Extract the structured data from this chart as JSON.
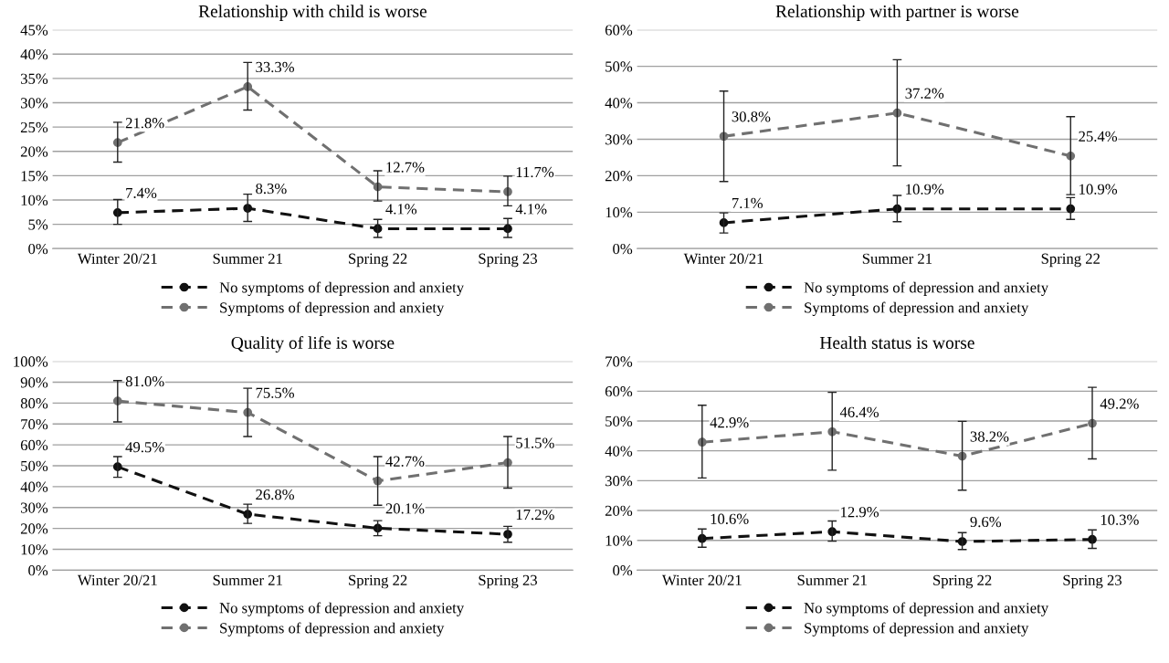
{
  "chart_data": [
    {
      "type": "line",
      "title": "Relationship with child is worse",
      "categories": [
        "Winter 20/21",
        "Summer 21",
        "Spring 22",
        "Spring 23"
      ],
      "ylim": [
        0,
        45
      ],
      "yticks": [
        {
          "value": 0,
          "label": "0%"
        },
        {
          "value": 5,
          "label": "5%"
        },
        {
          "value": 10,
          "label": "10%"
        },
        {
          "value": 15,
          "label": "15%"
        },
        {
          "value": 20,
          "label": "20%"
        },
        {
          "value": 25,
          "label": "25%"
        },
        {
          "value": 30,
          "label": "30%"
        },
        {
          "value": 35,
          "label": "35%"
        },
        {
          "value": 40,
          "label": "40%"
        },
        {
          "value": 45,
          "label": "45%"
        }
      ],
      "grid": "y",
      "legend": "bottom",
      "marker": "circle",
      "line_style": "dashed",
      "series": [
        {
          "name": "No symptoms of depression and anxiety",
          "color": "#111111",
          "values": [
            7.4,
            8.3,
            4.1,
            4.1
          ],
          "value_labels": [
            "7.4%",
            "8.3%",
            "4.1%",
            "4.1%"
          ],
          "errors": [
            [
              5.0,
              10.1
            ],
            [
              5.6,
              11.2
            ],
            [
              2.3,
              6.0
            ],
            [
              2.3,
              6.2
            ]
          ]
        },
        {
          "name": "Symptoms of depression and anxiety",
          "color": "#707070",
          "values": [
            21.8,
            33.3,
            12.7,
            11.7
          ],
          "value_labels": [
            "21.8%",
            "33.3%",
            "12.7%",
            "11.7%"
          ],
          "errors": [
            [
              17.8,
              26.0
            ],
            [
              28.5,
              38.3
            ],
            [
              9.8,
              16.0
            ],
            [
              8.8,
              14.9
            ]
          ]
        }
      ]
    },
    {
      "type": "line",
      "title": "Relationship with partner is worse",
      "categories": [
        "Winter 20/21",
        "Summer 21",
        "Spring 22"
      ],
      "ylim": [
        0,
        60
      ],
      "yticks": [
        {
          "value": 0,
          "label": "0%"
        },
        {
          "value": 10,
          "label": "10%"
        },
        {
          "value": 20,
          "label": "20%"
        },
        {
          "value": 30,
          "label": "30%"
        },
        {
          "value": 40,
          "label": "40%"
        },
        {
          "value": 50,
          "label": "50%"
        },
        {
          "value": 60,
          "label": "60%"
        }
      ],
      "grid": "y",
      "legend": "bottom",
      "marker": "circle",
      "line_style": "dashed",
      "series": [
        {
          "name": "No symptoms of depression and anxiety",
          "color": "#111111",
          "values": [
            7.1,
            10.9,
            10.9
          ],
          "value_labels": [
            "7.1%",
            "10.9%",
            "10.9%"
          ],
          "errors": [
            [
              4.3,
              9.8
            ],
            [
              7.4,
              14.6
            ],
            [
              8.0,
              14.0
            ]
          ]
        },
        {
          "name": "Symptoms of depression and anxiety",
          "color": "#707070",
          "values": [
            30.8,
            37.2,
            25.4
          ],
          "value_labels": [
            "30.8%",
            "37.2%",
            "25.4%"
          ],
          "errors": [
            [
              18.4,
              43.2
            ],
            [
              22.7,
              51.8
            ],
            [
              14.8,
              36.2
            ]
          ]
        }
      ]
    },
    {
      "type": "line",
      "title": "Quality of life is worse",
      "categories": [
        "Winter 20/21",
        "Summer 21",
        "Spring 22",
        "Spring 23"
      ],
      "ylim": [
        0,
        100
      ],
      "yticks": [
        {
          "value": 0,
          "label": "0%"
        },
        {
          "value": 10,
          "label": "10%"
        },
        {
          "value": 20,
          "label": "20%"
        },
        {
          "value": 30,
          "label": "30%"
        },
        {
          "value": 40,
          "label": "40%"
        },
        {
          "value": 50,
          "label": "50%"
        },
        {
          "value": 60,
          "label": "60%"
        },
        {
          "value": 70,
          "label": "70%"
        },
        {
          "value": 80,
          "label": "80%"
        },
        {
          "value": 90,
          "label": "90%"
        },
        {
          "value": 100,
          "label": "100%"
        }
      ],
      "grid": "y",
      "legend": "bottom",
      "marker": "circle",
      "line_style": "dashed",
      "series": [
        {
          "name": "No symptoms of depression and anxiety",
          "color": "#111111",
          "values": [
            49.5,
            26.8,
            20.1,
            17.2
          ],
          "value_labels": [
            "49.5%",
            "26.8%",
            "20.1%",
            "17.2%"
          ],
          "errors": [
            [
              44.5,
              54.4
            ],
            [
              22.4,
              31.6
            ],
            [
              16.5,
              23.7
            ],
            [
              13.4,
              21.0
            ]
          ]
        },
        {
          "name": "Symptoms of depression and anxiety",
          "color": "#707070",
          "values": [
            81.0,
            75.5,
            42.7,
            51.5
          ],
          "value_labels": [
            "81.0%",
            "75.5%",
            "42.7%",
            "51.5%"
          ],
          "errors": [
            [
              71.0,
              90.8
            ],
            [
              64.0,
              87.1
            ],
            [
              31.1,
              54.4
            ],
            [
              39.3,
              64.0
            ]
          ]
        }
      ]
    },
    {
      "type": "line",
      "title": "Health status is worse",
      "categories": [
        "Winter 20/21",
        "Summer 21",
        "Spring 22",
        "Spring 23"
      ],
      "ylim": [
        0,
        70
      ],
      "yticks": [
        {
          "value": 0,
          "label": "0%"
        },
        {
          "value": 10,
          "label": "10%"
        },
        {
          "value": 20,
          "label": "20%"
        },
        {
          "value": 30,
          "label": "30%"
        },
        {
          "value": 40,
          "label": "40%"
        },
        {
          "value": 50,
          "label": "50%"
        },
        {
          "value": 60,
          "label": "60%"
        },
        {
          "value": 70,
          "label": "70%"
        }
      ],
      "grid": "y",
      "legend": "bottom",
      "marker": "circle",
      "line_style": "dashed",
      "series": [
        {
          "name": "No symptoms of depression and anxiety",
          "color": "#111111",
          "values": [
            10.6,
            12.9,
            9.6,
            10.3
          ],
          "value_labels": [
            "10.6%",
            "12.9%",
            "9.6%",
            "10.3%"
          ],
          "errors": [
            [
              7.7,
              13.8
            ],
            [
              9.7,
              16.5
            ],
            [
              6.9,
              12.6
            ],
            [
              7.3,
              13.5
            ]
          ]
        },
        {
          "name": "Symptoms of depression and anxiety",
          "color": "#707070",
          "values": [
            42.9,
            46.4,
            38.2,
            49.2
          ],
          "value_labels": [
            "42.9%",
            "46.4%",
            "38.2%",
            "49.2%"
          ],
          "errors": [
            [
              30.9,
              55.3
            ],
            [
              33.5,
              59.6
            ],
            [
              26.8,
              49.9
            ],
            [
              37.3,
              61.3
            ]
          ]
        }
      ]
    }
  ]
}
